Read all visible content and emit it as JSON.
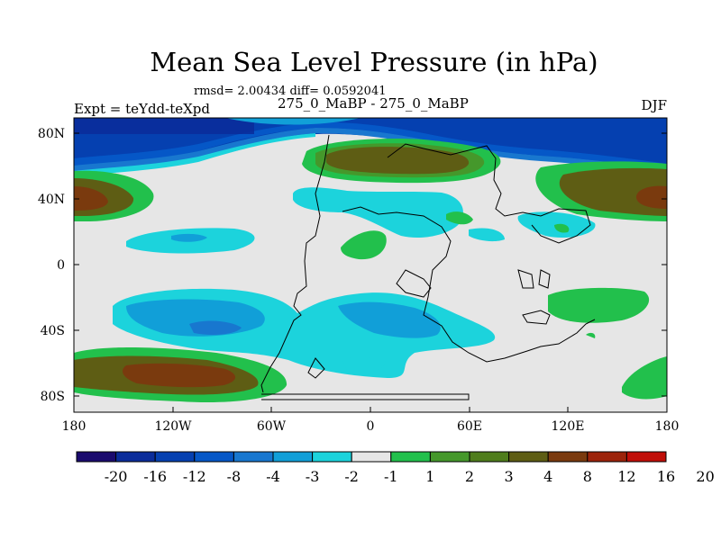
{
  "figure": {
    "title": "Mean Sea Level Pressure (in hPa)",
    "stats": "rmsd= 2.00434  diff= 0.0592041",
    "left_label": "Expt = teYdd-teXpd",
    "center_label": "275_0_MaBP - 275_0_MaBP",
    "right_label": "DJF"
  },
  "map": {
    "lat_ticks": [
      "80N",
      "40N",
      "0",
      "40S",
      "80S"
    ],
    "lon_ticks": [
      "180",
      "120W",
      "60W",
      "0",
      "60E",
      "120E",
      "180"
    ],
    "background_color": "#e6e6e6"
  },
  "colorbar": {
    "colors": [
      "#1a0a6e",
      "#0a2c9a",
      "#0540b0",
      "#0557c7",
      "#1877cf",
      "#119fd8",
      "#1cd3dc",
      "#e6e6e6",
      "#22c04c",
      "#45982b",
      "#4f7d1c",
      "#5e5d14",
      "#7a3a0e",
      "#9c230a",
      "#c00e08"
    ],
    "labels": [
      "-20",
      "-16",
      "-12",
      "-8",
      "-4",
      "-3",
      "-2",
      "-1",
      "1",
      "2",
      "3",
      "4",
      "8",
      "12",
      "16",
      "20"
    ]
  }
}
